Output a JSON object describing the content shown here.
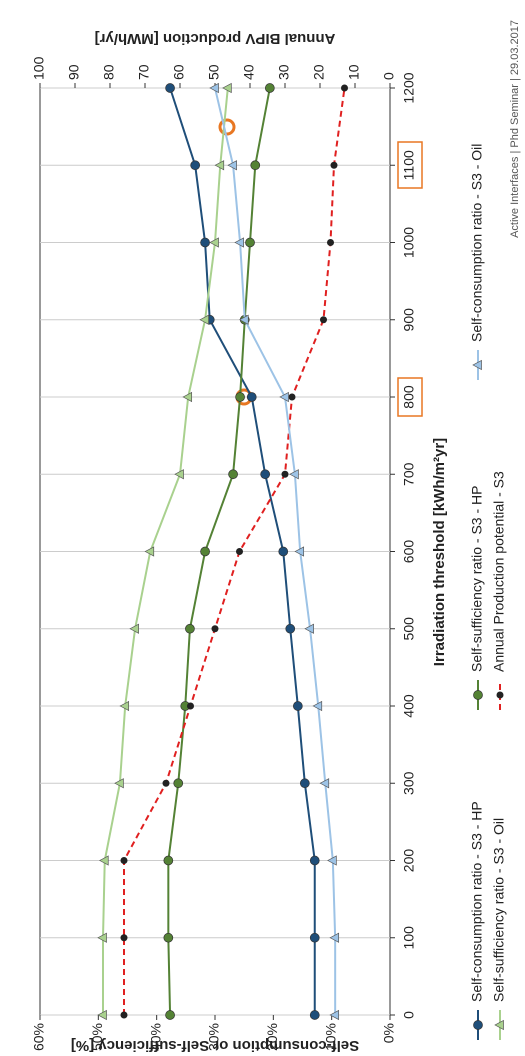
{
  "chart_data": {
    "type": "line",
    "xlabel": "Irradiation threshold [kWh/m²yr]",
    "ylabel": "Self-consumption or Self-sufficiency [%]",
    "y2label": "Annual BIPV production [MWh/yr]",
    "footer": "Active Interfaces | Phd Seminar | 29.03.2017",
    "x": [
      0,
      100,
      200,
      300,
      400,
      500,
      600,
      700,
      800,
      900,
      1000,
      1100,
      1200
    ],
    "xlim": [
      0,
      1200
    ],
    "xticks": [
      0,
      100,
      200,
      300,
      400,
      500,
      600,
      700,
      800,
      900,
      1000,
      1100,
      1200
    ],
    "ylim": [
      0,
      60
    ],
    "yticks": [
      {
        "value": 0,
        "label": "0%"
      },
      {
        "value": 10,
        "label": "10%"
      },
      {
        "value": 20,
        "label": "20%"
      },
      {
        "value": 30,
        "label": "30%"
      },
      {
        "value": 40,
        "label": "40%"
      },
      {
        "value": 50,
        "label": "50%"
      },
      {
        "value": 60,
        "label": "60%"
      }
    ],
    "y2lim": [
      0,
      100
    ],
    "y2ticks": [
      0,
      10,
      20,
      30,
      40,
      50,
      60,
      70,
      80,
      90,
      100
    ],
    "grid": true,
    "series": [
      {
        "name": "Self-consumption ratio - S3 -   HP",
        "color": "#1f4e79",
        "marker": "circle",
        "values": [
          12.9,
          12.9,
          12.9,
          14.6,
          15.8,
          17.1,
          18.3,
          21.4,
          23.7,
          30.9,
          31.7,
          33.4,
          37.7
        ]
      },
      {
        "name": "Self-sufficiency ratio - S3 - Oil",
        "color": "#a9d18e",
        "marker": "triangle",
        "values": [
          49.2,
          49.2,
          48.9,
          46.3,
          45.4,
          43.7,
          41.1,
          36,
          34.6,
          31.7,
          30,
          29.1,
          27.8
        ]
      },
      {
        "name": "Self-sufficiency ratio - S3 -   HP",
        "color": "#548235",
        "marker": "circle",
        "values": [
          37.7,
          38,
          38,
          36.3,
          35.1,
          34.3,
          31.7,
          26.9,
          25.7,
          24.9,
          24,
          23.1,
          20.6
        ]
      },
      {
        "name": "Annual Production potential - S3",
        "color": "#e02020",
        "marker": "dot",
        "dash": true,
        "axis": "y2",
        "values": [
          76,
          76,
          76,
          64,
          57,
          50,
          43,
          30,
          28,
          19,
          17,
          16,
          13
        ]
      },
      {
        "name": "Self-consumption ratio - S3 - Oil",
        "color": "#9dc3e6",
        "marker": "triangle",
        "values": [
          9.4,
          9.4,
          9.8,
          11.1,
          12.3,
          13.7,
          15.4,
          16.3,
          18,
          24.9,
          25.7,
          26.9,
          30
        ]
      }
    ]
  }
}
